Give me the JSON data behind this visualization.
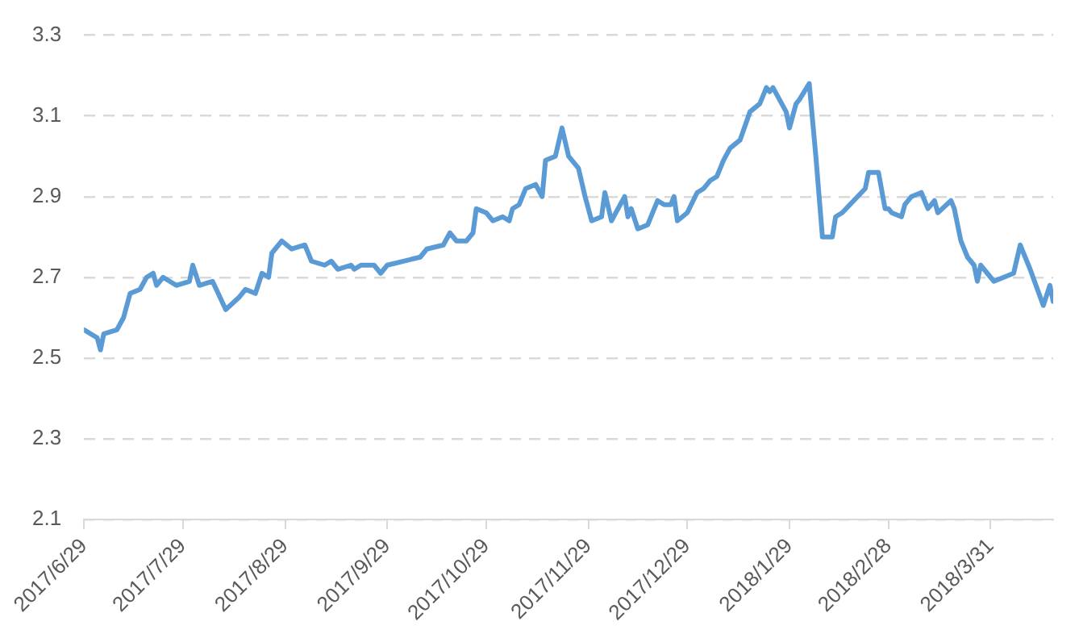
{
  "chart_data": {
    "type": "line",
    "x": [
      "2017-06-29",
      "2017-07-03",
      "2017-07-04",
      "2017-07-05",
      "2017-07-09",
      "2017-07-11",
      "2017-07-13",
      "2017-07-16",
      "2017-07-18",
      "2017-07-20",
      "2017-07-21",
      "2017-07-23",
      "2017-07-27",
      "2017-07-31",
      "2017-08-01",
      "2017-08-03",
      "2017-08-07",
      "2017-08-11",
      "2017-08-15",
      "2017-08-17",
      "2017-08-20",
      "2017-08-22",
      "2017-08-24",
      "2017-08-25",
      "2017-08-28",
      "2017-08-31",
      "2017-09-04",
      "2017-09-06",
      "2017-09-10",
      "2017-09-12",
      "2017-09-14",
      "2017-09-18",
      "2017-09-19",
      "2017-09-21",
      "2017-09-25",
      "2017-09-27",
      "2017-09-29",
      "2017-10-09",
      "2017-10-11",
      "2017-10-16",
      "2017-10-18",
      "2017-10-20",
      "2017-10-23",
      "2017-10-25",
      "2017-10-26",
      "2017-10-29",
      "2017-10-31",
      "2017-11-03",
      "2017-11-05",
      "2017-11-06",
      "2017-11-08",
      "2017-11-10",
      "2017-11-13",
      "2017-11-15",
      "2017-11-16",
      "2017-11-19",
      "2017-11-21",
      "2017-11-23",
      "2017-11-26",
      "2017-11-28",
      "2017-11-30",
      "2017-12-03",
      "2017-12-04",
      "2017-12-06",
      "2017-12-10",
      "2017-12-11",
      "2017-12-12",
      "2017-12-14",
      "2017-12-17",
      "2017-12-19",
      "2017-12-20",
      "2017-12-22",
      "2017-12-24",
      "2017-12-25",
      "2017-12-26",
      "2017-12-29",
      "2018-01-01",
      "2018-01-03",
      "2018-01-05",
      "2018-01-07",
      "2018-01-09",
      "2018-01-11",
      "2018-01-14",
      "2018-01-17",
      "2018-01-20",
      "2018-01-22",
      "2018-01-23",
      "2018-01-24",
      "2018-01-26",
      "2018-01-28",
      "2018-01-29",
      "2018-01-31",
      "2018-02-01",
      "2018-02-04",
      "2018-02-06",
      "2018-02-08",
      "2018-02-11",
      "2018-02-12",
      "2018-02-14",
      "2018-02-21",
      "2018-02-22",
      "2018-02-25",
      "2018-02-27",
      "2018-02-28",
      "2018-03-01",
      "2018-03-04",
      "2018-03-05",
      "2018-03-07",
      "2018-03-10",
      "2018-03-12",
      "2018-03-14",
      "2018-03-15",
      "2018-03-19",
      "2018-03-20",
      "2018-03-22",
      "2018-03-24",
      "2018-03-26",
      "2018-03-27",
      "2018-03-28",
      "2018-03-29",
      "2018-04-01",
      "2018-04-07",
      "2018-04-09",
      "2018-04-12",
      "2018-04-16",
      "2018-04-18",
      "2018-04-19"
    ],
    "series": [
      {
        "color": "#5b9bd5",
        "values": [
          2.57,
          2.55,
          2.52,
          2.56,
          2.57,
          2.6,
          2.66,
          2.67,
          2.7,
          2.71,
          2.68,
          2.7,
          2.68,
          2.69,
          2.73,
          2.68,
          2.69,
          2.62,
          2.65,
          2.67,
          2.66,
          2.71,
          2.7,
          2.76,
          2.79,
          2.77,
          2.78,
          2.74,
          2.73,
          2.74,
          2.72,
          2.73,
          2.72,
          2.73,
          2.73,
          2.71,
          2.73,
          2.75,
          2.77,
          2.78,
          2.81,
          2.79,
          2.79,
          2.81,
          2.87,
          2.86,
          2.84,
          2.85,
          2.84,
          2.87,
          2.88,
          2.92,
          2.93,
          2.9,
          2.99,
          3.0,
          3.07,
          3.0,
          2.97,
          2.9,
          2.84,
          2.85,
          2.91,
          2.84,
          2.9,
          2.85,
          2.87,
          2.82,
          2.83,
          2.87,
          2.89,
          2.88,
          2.88,
          2.9,
          2.84,
          2.86,
          2.91,
          2.92,
          2.94,
          2.95,
          2.99,
          3.02,
          3.04,
          3.11,
          3.13,
          3.17,
          3.16,
          3.17,
          3.14,
          3.11,
          3.07,
          3.13,
          3.14,
          3.18,
          3.0,
          2.8,
          2.8,
          2.85,
          2.86,
          2.92,
          2.96,
          2.96,
          2.87,
          2.87,
          2.86,
          2.85,
          2.88,
          2.9,
          2.91,
          2.87,
          2.89,
          2.86,
          2.89,
          2.87,
          2.79,
          2.75,
          2.73,
          2.69,
          2.73,
          2.72,
          2.69,
          2.71,
          2.78,
          2.72,
          2.63,
          2.68,
          2.64
        ]
      }
    ],
    "xlim": [
      "2017-06-29",
      "2018-04-19"
    ],
    "xticks": [
      {
        "value": "2017-06-29",
        "label": "2017/6/29"
      },
      {
        "value": "2017-07-29",
        "label": "2017/7/29"
      },
      {
        "value": "2017-08-29",
        "label": "2017/8/29"
      },
      {
        "value": "2017-09-29",
        "label": "2017/9/29"
      },
      {
        "value": "2017-10-29",
        "label": "2017/10/29"
      },
      {
        "value": "2017-11-29",
        "label": "2017/11/29"
      },
      {
        "value": "2017-12-29",
        "label": "2017/12/29"
      },
      {
        "value": "2018-01-29",
        "label": "2018/1/29"
      },
      {
        "value": "2018-02-28",
        "label": "2018/2/28"
      },
      {
        "value": "2018-03-31",
        "label": "2018/3/31"
      }
    ],
    "ylim": [
      2.1,
      3.3
    ],
    "yticks": [
      2.1,
      2.3,
      2.5,
      2.7,
      2.9,
      3.1,
      3.3
    ],
    "grid": "y",
    "legend": false,
    "marker": "none",
    "line_style": "solid"
  }
}
